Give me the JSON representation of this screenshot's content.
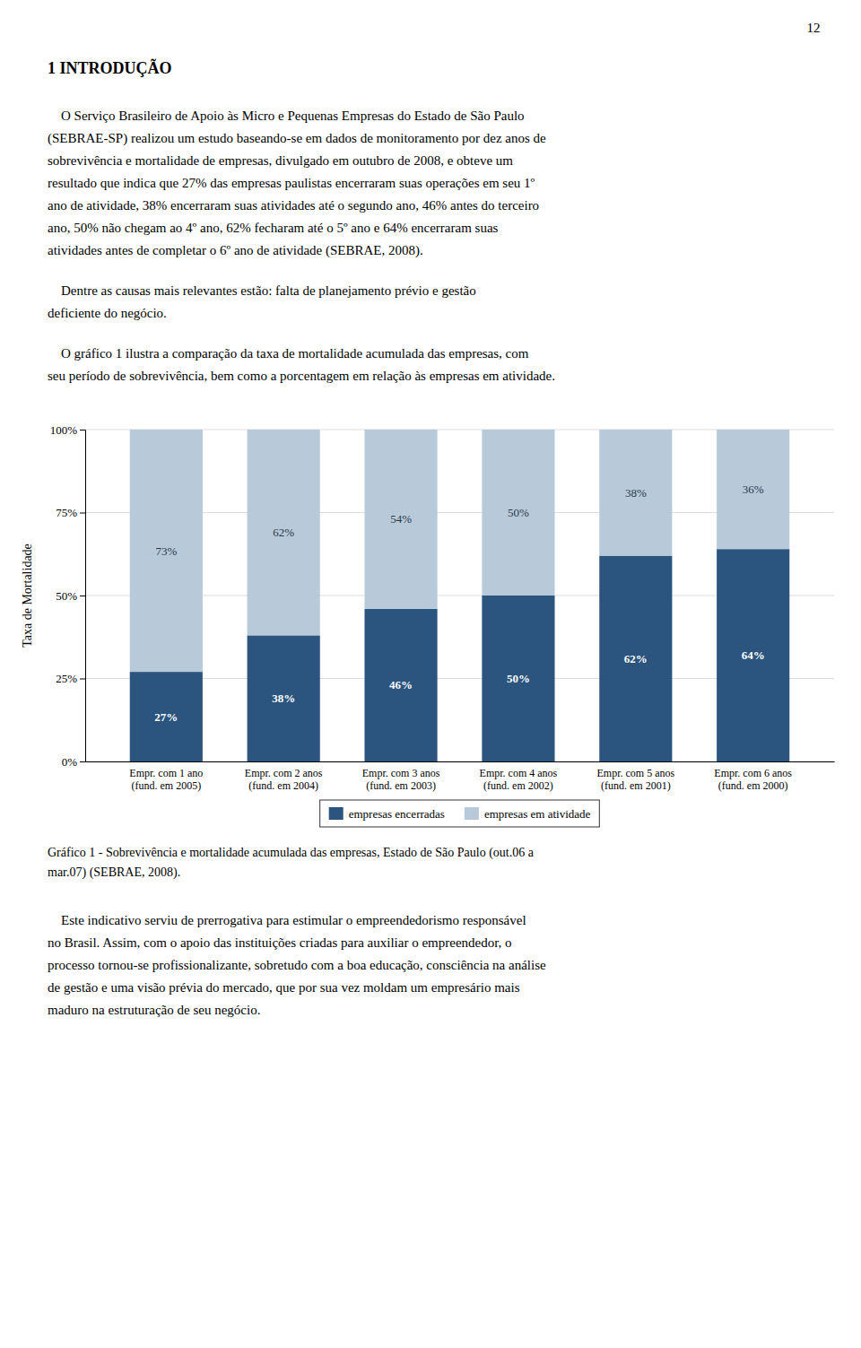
{
  "page_number": "12",
  "heading": "1 INTRODUÇÃO",
  "paragraphs_before": [
    [
      "    O Serviço Brasileiro de Apoio às Micro e Pequenas Empresas do Estado de São Paulo",
      "(SEBRAE-SP) realizou um estudo baseando-se em dados de monitoramento por dez anos de",
      "sobrevivência e mortalidade de empresas, divulgado em outubro de 2008, e obteve um",
      "resultado que indica que 27% das empresas paulistas encerraram suas operações em seu 1º",
      "ano de atividade, 38% encerraram suas atividades até o segundo ano, 46% antes do terceiro",
      "ano, 50% não chegam ao 4º ano, 62% fecharam até o 5º ano e 64% encerraram suas",
      "atividades antes de completar o 6º ano de atividade (SEBRAE, 2008)."
    ],
    [
      "    Dentre as causas mais relevantes estão: falta de planejamento prévio e gestão",
      "deficiente do negócio."
    ],
    [
      "    O gráfico 1 ilustra a comparação da taxa de mortalidade acumulada das empresas, com",
      "seu período de sobrevivência, bem como a porcentagem em relação às empresas em atividade."
    ]
  ],
  "chart_data": {
    "type": "bar",
    "stacked": true,
    "categories": [
      "Empr. com 1 ano\n(fund. em 2005)",
      "Empr. com 2 anos\n(fund. em 2004)",
      "Empr. com 3 anos\n(fund. em 2003)",
      "Empr. com 4 anos\n(fund. em 2002)",
      "Empr. com 5 anos\n(fund. em 2001)",
      "Empr. com 6 anos\n(fund. em 2000)"
    ],
    "series": [
      {
        "name": "empresas encerradas",
        "color": "#2B547E",
        "values": [
          27,
          38,
          46,
          50,
          62,
          64
        ],
        "value_labels": [
          "27%",
          "38%",
          "46%",
          "50%",
          "62%",
          "64%"
        ]
      },
      {
        "name": "empresas em atividade",
        "color": "#B8C9D9",
        "values": [
          73,
          62,
          54,
          50,
          38,
          36
        ],
        "value_labels": [
          "73%",
          "62%",
          "54%",
          "50%",
          "38%",
          "36%"
        ]
      }
    ],
    "y_label": "Taxa de Mortalidade",
    "ylim": [
      0,
      100
    ],
    "yticks": [
      {
        "value": 0,
        "label": "0%"
      },
      {
        "value": 25,
        "label": "25%"
      },
      {
        "value": 50,
        "label": "50%"
      },
      {
        "value": 75,
        "label": "75%"
      },
      {
        "value": 100,
        "label": "100%"
      }
    ],
    "grid": true,
    "data_labels": true,
    "legend": "bottom"
  },
  "caption": [
    "Gráfico 1 - Sobrevivência e mortalidade acumulada das empresas, Estado de São Paulo (out.06 a",
    "mar.07) (SEBRAE, 2008)."
  ],
  "paragraphs_after": [
    [
      "    Este indicativo serviu de prerrogativa para estimular o empreendedorismo responsável",
      "no Brasil. Assim, com o apoio das instituições criadas para auxiliar o empreendedor, o",
      "processo tornou-se profissionalizante, sobretudo com a boa educação, consciência na análise",
      "de gestão e uma visão prévia do mercado, que por sua vez moldam um empresário mais",
      "maduro na estruturação de seu negócio."
    ]
  ]
}
